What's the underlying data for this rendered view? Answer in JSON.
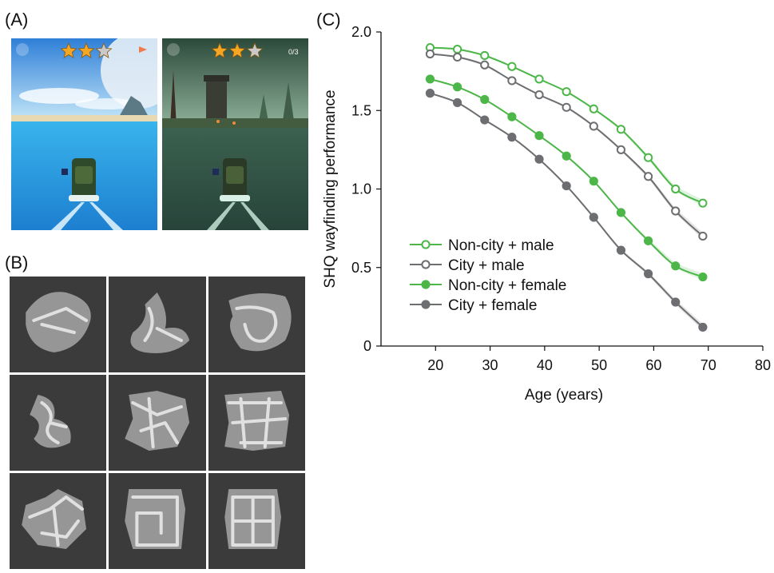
{
  "panels": {
    "a_label": "(A)",
    "b_label": "(B)",
    "c_label": "(C)"
  },
  "game": {
    "screen1": {
      "stars_filled": 2,
      "stars_total": 3,
      "accent": "#3aa0e8"
    },
    "screen2": {
      "stars_filled": 2,
      "stars_total": 3,
      "counter_text": "0/3",
      "accent": "#3e5a48"
    }
  },
  "chart_data": {
    "type": "line",
    "title": "",
    "xlabel": "Age (years)",
    "ylabel": "SHQ wayfinding performance",
    "xlim": [
      10,
      80
    ],
    "ylim": [
      0,
      2.0
    ],
    "x_ticks": [
      20,
      30,
      40,
      50,
      60,
      70,
      80
    ],
    "y_ticks": [
      0,
      0.5,
      1.0,
      1.5,
      2.0
    ],
    "y_tick_labels": [
      "0",
      "0.5",
      "1.0",
      "1.5",
      "2.0"
    ],
    "legend_position": "lower-left",
    "grid": false,
    "x": [
      19,
      24,
      29,
      34,
      39,
      44,
      49,
      54,
      59,
      64,
      69
    ],
    "series": [
      {
        "name": "Non-city + male",
        "color": "#4cb748",
        "marker": "open",
        "values": [
          1.9,
          1.89,
          1.85,
          1.78,
          1.7,
          1.62,
          1.51,
          1.38,
          1.2,
          1.0,
          0.91
        ]
      },
      {
        "name": "City + male",
        "color": "#6d6e71",
        "marker": "open",
        "values": [
          1.86,
          1.84,
          1.79,
          1.69,
          1.6,
          1.52,
          1.4,
          1.25,
          1.08,
          0.86,
          0.7
        ]
      },
      {
        "name": "Non-city + female",
        "color": "#4cb748",
        "marker": "filled",
        "values": [
          1.7,
          1.65,
          1.57,
          1.46,
          1.34,
          1.21,
          1.05,
          0.85,
          0.67,
          0.51,
          0.44
        ]
      },
      {
        "name": "City + female",
        "color": "#6d6e71",
        "marker": "filled",
        "values": [
          1.61,
          1.55,
          1.44,
          1.33,
          1.19,
          1.02,
          0.82,
          0.61,
          0.46,
          0.28,
          0.12
        ]
      }
    ]
  }
}
